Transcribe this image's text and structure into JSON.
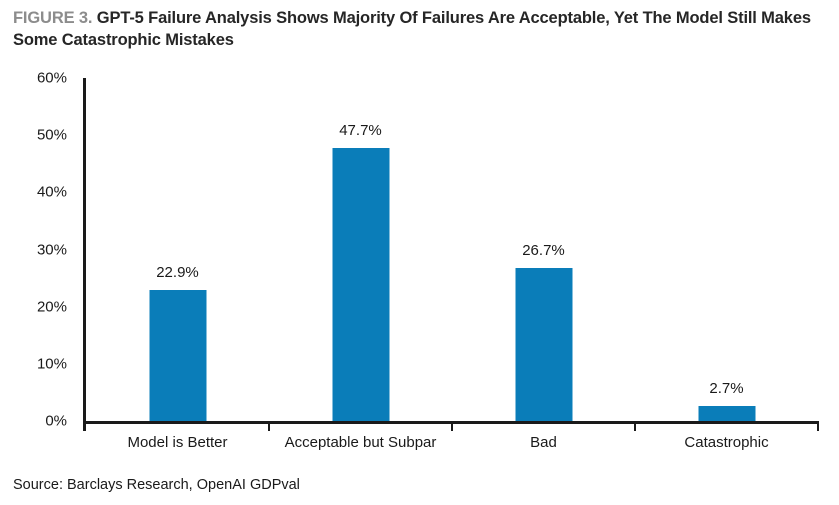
{
  "header": {
    "figure_label": "FIGURE 3.",
    "title": "GPT-5 Failure Analysis Shows Majority Of Failures Are Acceptable, Yet The Model Still Makes Some Catastrophic Mistakes"
  },
  "chart_data": {
    "type": "bar",
    "categories": [
      "Model is Better",
      "Acceptable but Subpar",
      "Bad",
      "Catastrophic"
    ],
    "values": [
      22.9,
      47.7,
      26.7,
      2.7
    ],
    "value_labels": [
      "22.9%",
      "47.7%",
      "26.7%",
      "2.7%"
    ],
    "ytick_labels": [
      "60%",
      "50%",
      "40%",
      "30%",
      "20%",
      "10%",
      "0%"
    ],
    "ylim": [
      0,
      60
    ],
    "grid": false,
    "legend_position": "none",
    "bar_color": "#0a7db9"
  },
  "footer": {
    "source": "Source: Barclays Research, OpenAI GDPval"
  },
  "colors": {
    "bar": "#0a7db9",
    "figure_label": "#8c8c8c",
    "title_text": "#262626",
    "axis": "#1a1a1a",
    "background": "#ffffff"
  }
}
